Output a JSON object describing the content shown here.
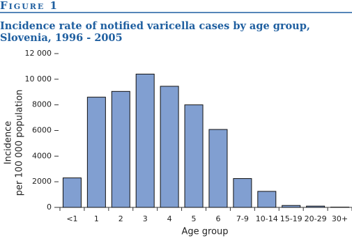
{
  "chart_data": {
    "type": "bar",
    "figure_label": "Figure 1",
    "title": [
      "Incidence rate of notified varicella cases by age group,",
      "Slovenia, 1996 - 2005"
    ],
    "xlabel": "Age group",
    "ylabel": [
      "Incidence",
      "per 100 000 population"
    ],
    "categories": [
      "<1",
      "1",
      "2",
      "3",
      "4",
      "5",
      "6",
      "7-9",
      "10-14",
      "15-19",
      "20-29",
      "30+"
    ],
    "values": [
      2300,
      8600,
      9050,
      10400,
      9450,
      8000,
      6080,
      2250,
      1250,
      150,
      100,
      20
    ],
    "color": "#819fd1",
    "ylim": [
      0,
      12000
    ],
    "yticks": [
      0,
      2000,
      4000,
      6000,
      8000,
      {
        "value": 10000,
        "label": "10 000"
      },
      {
        "value": 12000,
        "label": "12 000"
      }
    ]
  }
}
